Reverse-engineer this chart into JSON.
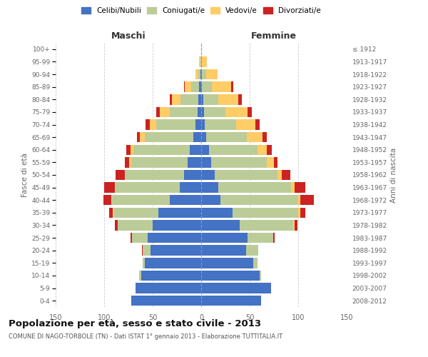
{
  "age_groups": [
    "0-4",
    "5-9",
    "10-14",
    "15-19",
    "20-24",
    "25-29",
    "30-34",
    "35-39",
    "40-44",
    "45-49",
    "50-54",
    "55-59",
    "60-64",
    "65-69",
    "70-74",
    "75-79",
    "80-84",
    "85-89",
    "90-94",
    "95-99",
    "100+"
  ],
  "birth_years": [
    "2008-2012",
    "2003-2007",
    "1998-2002",
    "1993-1997",
    "1988-1992",
    "1983-1987",
    "1978-1982",
    "1973-1977",
    "1968-1972",
    "1963-1967",
    "1958-1962",
    "1953-1957",
    "1948-1952",
    "1943-1947",
    "1938-1942",
    "1933-1937",
    "1928-1932",
    "1923-1927",
    "1918-1922",
    "1913-1917",
    "≤ 1912"
  ],
  "males_celibi": [
    72,
    68,
    62,
    58,
    52,
    55,
    50,
    44,
    32,
    22,
    18,
    14,
    12,
    8,
    6,
    4,
    3,
    2,
    1,
    0,
    0
  ],
  "males_coniugati": [
    0,
    0,
    2,
    2,
    8,
    16,
    36,
    46,
    60,
    66,
    60,
    58,
    58,
    50,
    40,
    28,
    18,
    8,
    2,
    1,
    0
  ],
  "males_vedovi": [
    0,
    0,
    0,
    0,
    0,
    0,
    0,
    1,
    1,
    1,
    1,
    2,
    3,
    5,
    7,
    11,
    9,
    7,
    3,
    1,
    0
  ],
  "males_divorziati": [
    0,
    0,
    0,
    0,
    1,
    2,
    3,
    4,
    8,
    11,
    9,
    5,
    4,
    3,
    4,
    3,
    2,
    1,
    0,
    0,
    0
  ],
  "females_nubili": [
    62,
    72,
    60,
    54,
    46,
    48,
    40,
    32,
    20,
    18,
    14,
    10,
    8,
    5,
    4,
    3,
    2,
    1,
    1,
    0,
    0
  ],
  "females_coniugate": [
    0,
    0,
    2,
    4,
    13,
    26,
    55,
    68,
    80,
    75,
    65,
    58,
    50,
    42,
    32,
    22,
    16,
    10,
    4,
    1,
    0
  ],
  "females_vedove": [
    0,
    0,
    0,
    0,
    0,
    0,
    1,
    2,
    2,
    3,
    4,
    7,
    10,
    16,
    20,
    23,
    20,
    20,
    12,
    5,
    0
  ],
  "females_divorziate": [
    0,
    0,
    0,
    0,
    0,
    2,
    3,
    5,
    14,
    11,
    9,
    4,
    5,
    5,
    4,
    4,
    4,
    2,
    0,
    0,
    0
  ],
  "colors_celibi": "#4472C4",
  "colors_coniugati": "#BBCC99",
  "colors_vedovi": "#FFCC66",
  "colors_divorziati": "#CC2222",
  "title": "Popolazione per età, sesso e stato civile - 2013",
  "subtitle": "COMUNE DI NAGO-TORBOLE (TN) - Dati ISTAT 1° gennaio 2013 - Elaborazione TUTTITALIA.IT",
  "label_maschi": "Maschi",
  "label_femmine": "Femmine",
  "ylabel_left": "Fasce di età",
  "ylabel_right": "Anni di nascita",
  "xlim": 150,
  "legend_labels": [
    "Celibi/Nubili",
    "Coniugati/e",
    "Vedovi/e",
    "Divorziati/e"
  ],
  "bg_color": "#ffffff",
  "grid_color": "#cccccc",
  "text_color": "#666666"
}
